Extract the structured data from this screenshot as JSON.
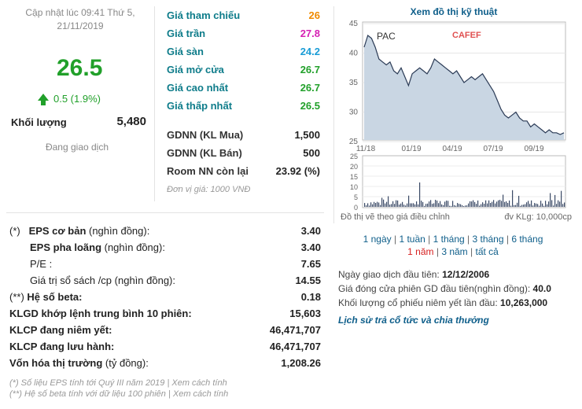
{
  "update": {
    "line1": "Cập nhật lúc 09:41 Thứ 5,",
    "line2": "21/11/2019"
  },
  "price": {
    "current": "26.5",
    "change": "0.5 (1.9%)"
  },
  "volume": {
    "label": "Khối lượng",
    "value": "5,480"
  },
  "status": "Đang giao dịch",
  "quote": [
    {
      "label": "Giá tham chiếu",
      "value": "26"
    },
    {
      "label": "Giá trần",
      "value": "27.8"
    },
    {
      "label": "Giá sàn",
      "value": "24.2"
    },
    {
      "label": "Giá mở cửa",
      "value": "26.7"
    },
    {
      "label": "Giá cao nhất",
      "value": "26.7"
    },
    {
      "label": "Giá thấp nhất",
      "value": "26.5"
    }
  ],
  "foreign": [
    {
      "label": "GDNN (KL Mua)",
      "value": "1,500"
    },
    {
      "label": "GDNN (KL Bán)",
      "value": "500"
    },
    {
      "label": "Room NN còn lại",
      "value": "23.92 (%)"
    }
  ],
  "unit_note": "Đơn vị giá: 1000 VNĐ",
  "chart": {
    "title": "Xem đồ thị kỹ thuật",
    "ticker": "PAC",
    "brand": "CAFEF",
    "y_ticks": [
      "45",
      "40",
      "35",
      "30",
      "25"
    ],
    "x_ticks": [
      "11/18",
      "01/19",
      "04/19",
      "07/19",
      "09/19"
    ],
    "vol_ticks": [
      "25",
      "20",
      "15",
      "10",
      "5",
      "0"
    ],
    "foot_left": "Đồ thị vẽ theo giá điều chỉnh",
    "foot_right": "đv KLg: 10,000cp",
    "price_series": [
      41,
      43,
      42.5,
      41,
      39,
      38.5,
      38,
      38.5,
      37,
      36.5,
      37.5,
      36,
      34.5,
      36.5,
      37,
      37.5,
      37,
      36.5,
      37.5,
      39,
      38.5,
      38,
      37.5,
      37,
      36.5,
      37,
      36,
      35,
      35.5,
      36,
      35.5,
      36,
      36.5,
      35.5,
      34.5,
      33.5,
      32,
      30.5,
      29.5,
      29,
      29.5,
      30,
      29,
      28.5,
      28.5,
      27.5,
      28,
      27.5,
      27,
      26.5,
      27,
      26.5,
      26.5,
      26.2,
      26.5
    ]
  },
  "ranges": {
    "r1": "1 ngày",
    "r2": "1 tuần",
    "r3": "1 tháng",
    "r4": "3 tháng",
    "r5": "6 tháng",
    "r6": "1 năm",
    "r7": "3 năm",
    "r8": "tất cả"
  },
  "info": {
    "first_date_label": "Ngày giao dịch đầu tiên:",
    "first_date": "12/12/2006",
    "first_price_label": "Giá đóng cửa phiên GD đầu tiên(nghìn đồng):",
    "first_price": "40.0",
    "first_volume_label": "Khối lượng cổ phiếu niêm yết lần đầu:",
    "first_volume": "10,263,000",
    "history_link": "Lịch sử trả cổ tức và chia thưởng"
  },
  "fundamentals": {
    "eps_basic": {
      "prefix": "(*)",
      "label": "EPS cơ bản",
      "unit": " (nghìn đồng):",
      "value": "3.40"
    },
    "eps_diluted": {
      "label": "EPS pha loãng",
      "unit": " (nghìn đồng):",
      "value": "3.40"
    },
    "pe": {
      "label": "P/E :",
      "value": "7.65"
    },
    "book_value": {
      "label": "Giá trị sổ sách /cp",
      "unit": " (nghìn đồng):",
      "value": "14.55"
    },
    "beta": {
      "prefix": "(**)",
      "label": " Hệ số beta:",
      "value": "0.18"
    },
    "avg_volume": {
      "label": "KLGD khớp lệnh trung bình 10 phiên:",
      "value": "15,603"
    },
    "listed_shares": {
      "label": "KLCP đang niêm yết:",
      "value": "46,471,707"
    },
    "outstanding_shares": {
      "label": "KLCP đang lưu hành:",
      "value": "46,471,707"
    },
    "market_cap": {
      "label": "Vốn hóa thị trường",
      "unit": " (tỷ đồng):",
      "value": "1,208.26"
    }
  },
  "footnotes": {
    "f1": "(*) Số liệu EPS tính tới Quý III năm 2019 | Xem cách tính",
    "f2": "(**) Hệ số beta tính với dữ liệu 100 phiên | Xem cách tính"
  },
  "colors": {
    "green": "#21a02a",
    "orange": "#f08a00",
    "pink": "#d620b4",
    "cyan": "#1a9cd6",
    "link": "#0e5e8a"
  }
}
